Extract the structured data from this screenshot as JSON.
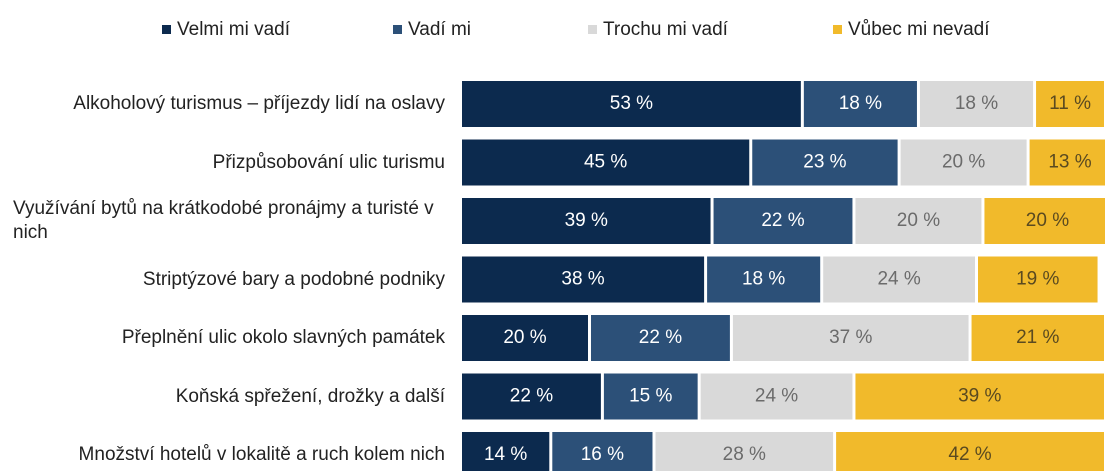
{
  "chart_data": {
    "type": "stacked-bar-horizontal",
    "categories": [
      "Alkoholový turismus – příjezdy lidí na oslavy",
      "Přizpůsobování ulic turismu",
      "Využívání bytů na krátkodobé pronájmy a turisté v nich",
      "Striptýzové bary a podobné podniky",
      "Přeplnění ulic okolo slavných památek",
      "Koňská spřežení, drožky a další",
      "Množství hotelů v lokalitě a ruch kolem nich"
    ],
    "series": [
      {
        "name": "Velmi mi vadí",
        "color": "#0c2a4e",
        "values": [
          53,
          45,
          39,
          38,
          20,
          22,
          14
        ],
        "value_labels": [
          "53 %",
          "45 %",
          "39 %",
          "38 %",
          "20 %",
          "22 %",
          "14 %"
        ]
      },
      {
        "name": "Vadí mi",
        "color": "#2c5078",
        "values": [
          18,
          23,
          22,
          18,
          22,
          15,
          16
        ],
        "value_labels": [
          "18 %",
          "23 %",
          "22 %",
          "18 %",
          "22 %",
          "15 %",
          "16 %"
        ]
      },
      {
        "name": "Trochu mi vadí",
        "color": "#d9d9d9",
        "values": [
          18,
          20,
          20,
          24,
          37,
          24,
          28
        ],
        "value_labels": [
          "18 %",
          "20 %",
          "20 %",
          "24 %",
          "37 %",
          "24 %",
          "28 %"
        ]
      },
      {
        "name": "Vůbec mi nevadí",
        "color": "#f1ba2b",
        "values": [
          11,
          13,
          20,
          19,
          21,
          39,
          42
        ],
        "value_labels": [
          "11 %",
          "13 %",
          "20 %",
          "19 %",
          "21 %",
          "39 %",
          "42 %"
        ]
      }
    ],
    "legend": "top"
  }
}
